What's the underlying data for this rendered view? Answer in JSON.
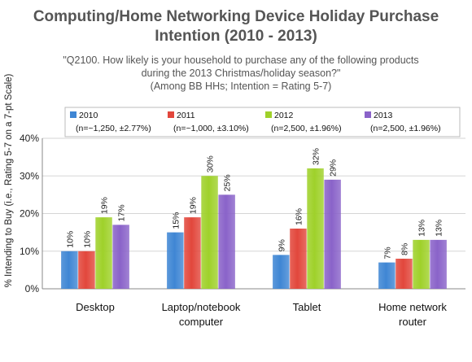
{
  "chart_data": {
    "type": "bar",
    "title": [
      "Computing/Home Networking Device Holiday Purchase",
      "Intention (2010 - 2013)"
    ],
    "subtitle": [
      "\"Q2100. How likely is your household to purchase any of the following products",
      "during the 2013 Christmas/holiday season?\"",
      "(Among BB HHs; Intention = Rating 5-7)"
    ],
    "ylabel": "% Intending to Buy (i.e., Rating 5-7 on a 7-pt Scale)",
    "xlabel": "",
    "ylim": [
      0,
      40
    ],
    "yticks": [
      0,
      10,
      20,
      30,
      40
    ],
    "ytick_labels": [
      "0%",
      "10%",
      "20%",
      "30%",
      "40%"
    ],
    "grid": true,
    "legend_position": "top",
    "categories": [
      [
        "Desktop"
      ],
      [
        "Laptop/notebook",
        "computer"
      ],
      [
        "Tablet"
      ],
      [
        "Home network",
        "router"
      ]
    ],
    "series": [
      {
        "name": "2010",
        "note": "(n=~1,250, ±2.77%)",
        "color": "#3f86d4",
        "values": [
          10,
          15,
          9,
          7
        ],
        "labels": [
          "10%",
          "15%",
          "9%",
          "7%"
        ]
      },
      {
        "name": "2011",
        "note": "(n=~1,000, ±3.10%)",
        "color": "#e2473c",
        "values": [
          10,
          19,
          16,
          8
        ],
        "labels": [
          "10%",
          "19%",
          "16%",
          "8%"
        ]
      },
      {
        "name": "2012",
        "note": "(n=2,500, ±1.96%)",
        "color": "#9fd12a",
        "values": [
          19,
          30,
          32,
          13
        ],
        "labels": [
          "19%",
          "30%",
          "32%",
          "13%"
        ]
      },
      {
        "name": "2013",
        "note": "(n=2,500, ±1.96%)",
        "color": "#8a63c9",
        "values": [
          17,
          25,
          29,
          13
        ],
        "labels": [
          "17%",
          "25%",
          "29%",
          "13%"
        ]
      }
    ]
  }
}
